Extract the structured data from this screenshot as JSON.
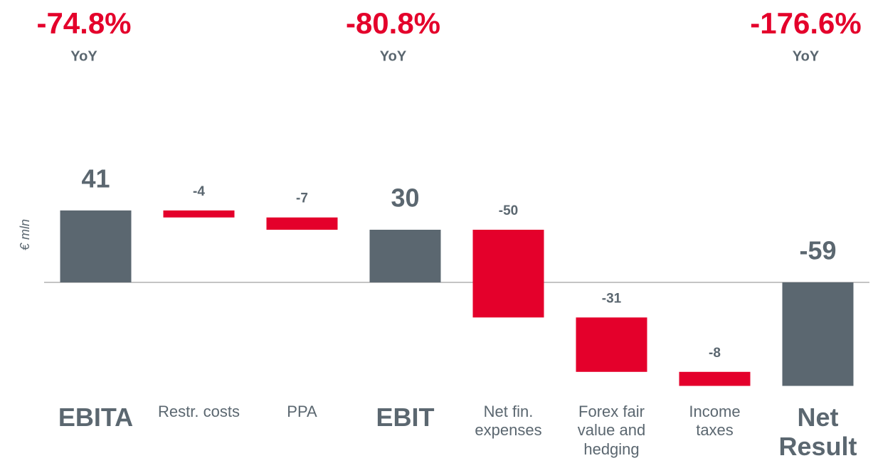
{
  "chart_data": {
    "type": "waterfall",
    "y_axis_label": "€ mln",
    "categories": [
      "EBITA",
      "Restr. costs",
      "PPA",
      "EBIT",
      "Net fin. expenses",
      "Forex fair value and hedging",
      "Income taxes",
      "Net Result"
    ],
    "values": [
      41,
      -4,
      -7,
      30,
      -50,
      -31,
      -8,
      -59
    ],
    "colors": [
      "#5b6770",
      "#e4002b",
      "#e4002b",
      "#5b6770",
      "#e4002b",
      "#e4002b",
      "#e4002b",
      "#5b6770"
    ],
    "ylim": [
      -60,
      60
    ],
    "annotations": [
      {
        "category": "EBITA",
        "text": "-74.8%",
        "subtext": "YoY"
      },
      {
        "category": "EBIT",
        "text": "-80.8%",
        "subtext": "YoY"
      },
      {
        "category": "Net Result",
        "text": "-176.6%",
        "subtext": "YoY"
      }
    ]
  }
}
